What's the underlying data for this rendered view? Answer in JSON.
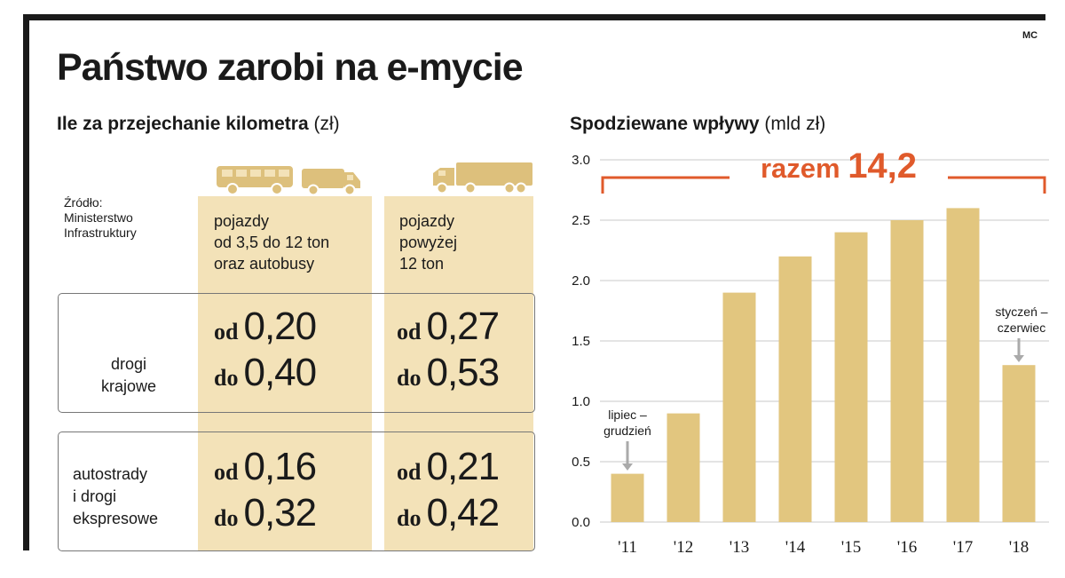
{
  "credit": "MC",
  "title": "Państwo zarobi na e-mycie",
  "table": {
    "title": "Ile za przejechanie kilometra",
    "unit": "(zł)",
    "source": [
      "Źródło:",
      "Ministerstwo",
      "Infrastruktury"
    ],
    "columns": [
      {
        "lines": [
          "pojazdy",
          "od 3,5 do 12 ton",
          "oraz autobusy"
        ],
        "icons": [
          "bus-icon",
          "van-icon"
        ]
      },
      {
        "lines": [
          "pojazdy",
          "powyżej",
          "12 ton"
        ],
        "icons": [
          "truck-icon"
        ]
      }
    ],
    "rows": [
      {
        "label": [
          "drogi",
          "krajowe"
        ],
        "cells": [
          {
            "from": "0,20",
            "to": "0,40"
          },
          {
            "from": "0,27",
            "to": "0,53"
          }
        ]
      },
      {
        "label": [
          "autostrady",
          "i drogi",
          "ekspresowe"
        ],
        "cells": [
          {
            "from": "0,16",
            "to": "0,32"
          },
          {
            "from": "0,21",
            "to": "0,42"
          }
        ]
      }
    ],
    "from_word": "od",
    "to_word": "do",
    "colors": {
      "column_fill": "#f3e2b8",
      "icon": "#ddc07c"
    }
  },
  "chart_data": {
    "type": "bar",
    "title": "Spodziewane wpływy",
    "unit": "(mld zł)",
    "categories": [
      "'11",
      "'12",
      "'13",
      "'14",
      "'15",
      "'16",
      "'17",
      "'18"
    ],
    "values": [
      0.4,
      0.9,
      1.9,
      2.2,
      2.4,
      2.5,
      2.6,
      1.3
    ],
    "ylim": [
      0,
      3.0
    ],
    "yticks": [
      "0.0",
      "0.5",
      "1.0",
      "1.5",
      "2.0",
      "2.5",
      "3.0"
    ],
    "grid": true,
    "total_label": "razem",
    "total_value": "14,2",
    "annotations": [
      {
        "text": [
          "lipiec –",
          "grudzień"
        ],
        "category": "'11"
      },
      {
        "text": [
          "styczeń –",
          "czerwiec"
        ],
        "category": "'18"
      }
    ],
    "colors": {
      "bar": "#e2c67f",
      "accent": "#e05a2b",
      "grid": "#c8c8c8"
    }
  }
}
